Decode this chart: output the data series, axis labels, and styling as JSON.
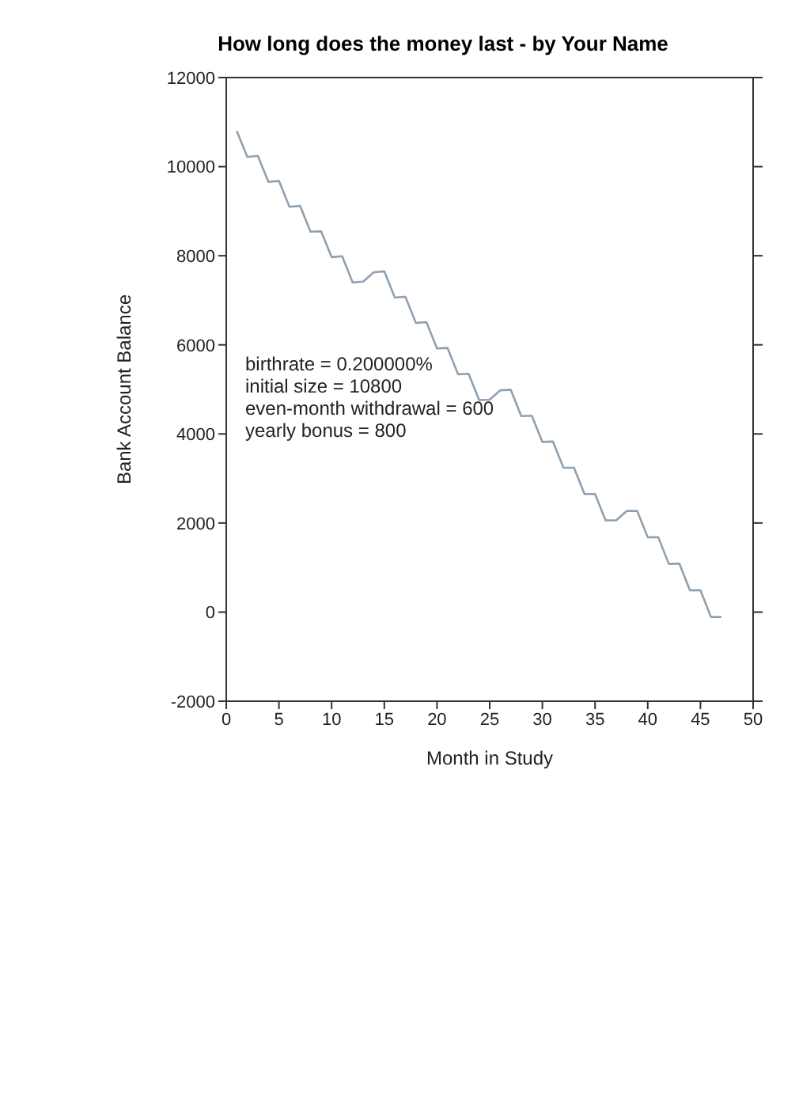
{
  "chart_data": {
    "type": "line",
    "title": "How long does the money last - by Your Name",
    "xlabel": "Month in Study",
    "ylabel": "Bank Account Balance",
    "annotations": [
      "birthrate = 0.200000%",
      "initial size = 10800",
      "even-month withdrawal = 600",
      "yearly bonus = 800"
    ],
    "x": [
      1,
      2,
      3,
      4,
      5,
      6,
      7,
      8,
      9,
      10,
      11,
      12,
      13,
      14,
      15,
      16,
      17,
      18,
      19,
      20,
      21,
      22,
      23,
      24,
      25,
      26,
      27,
      28,
      29,
      30,
      31,
      32,
      33,
      34,
      35,
      36,
      37,
      38,
      39,
      40,
      41,
      42,
      43,
      44,
      45,
      46,
      47
    ],
    "series": [
      {
        "color": "#8fa0b0",
        "values": [
          10800,
          10220,
          10240,
          9660,
          9680,
          9100,
          9120,
          8540,
          8550,
          7970,
          7990,
          7400,
          7420,
          7630,
          7650,
          7060,
          7080,
          6490,
          6510,
          5920,
          5930,
          5340,
          5350,
          4760,
          4770,
          4980,
          4990,
          4400,
          4410,
          3820,
          3830,
          3240,
          3240,
          2650,
          2650,
          2060,
          2060,
          2270,
          2270,
          1680,
          1680,
          1080,
          1090,
          490,
          490,
          -110,
          -110
        ]
      }
    ],
    "xlim": [
      0,
      50
    ],
    "xticks": [
      0,
      5,
      10,
      15,
      20,
      25,
      30,
      35,
      40,
      45,
      50
    ],
    "ylim": [
      -2000,
      12000
    ],
    "yticks": [
      -2000,
      0,
      2000,
      4000,
      6000,
      8000,
      10000,
      12000
    ],
    "grid": false,
    "marker": "none",
    "line_style": "solid"
  }
}
